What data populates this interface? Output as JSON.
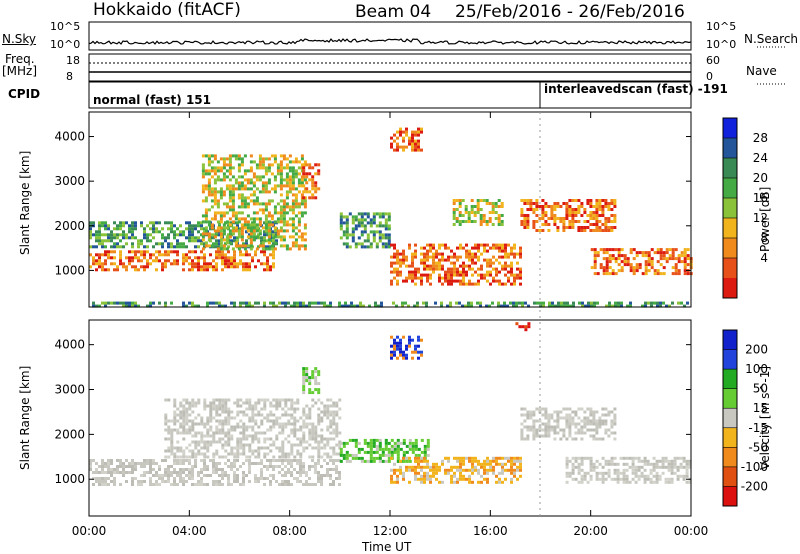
{
  "header": {
    "station": "Hokkaido (fitACF)",
    "beam": "Beam 04",
    "date_range": "25/Feb/2016 - 26/Feb/2016"
  },
  "top_panels": {
    "nsky_label": "N.Sky",
    "nsearch_label": "N.Search",
    "ns_tick_high": "10^5",
    "ns_tick_low": "10^0",
    "freq_label": "Freq.",
    "freq_unit": "[MHz]",
    "freq_ticks": [
      "18",
      "8"
    ],
    "nave_label": "Nave",
    "nave_ticks": [
      "60",
      "0"
    ],
    "cpid_label": "CPID",
    "cpid_modes": [
      {
        "label": "normal (fast) 151"
      },
      {
        "label": "interleavedscan (fast) -191"
      }
    ]
  },
  "chart_data": [
    {
      "type": "heatmap",
      "name": "power",
      "ylabel": "Slant Range [km]",
      "yticks": [
        "1000",
        "2000",
        "3000",
        "4000"
      ],
      "ylim": [
        180,
        4550
      ],
      "xlim": [
        0,
        24
      ],
      "colorbar": {
        "label": "Power [dB]",
        "ticks": [
          "28",
          "24",
          "20",
          "16",
          "12",
          "8",
          "4"
        ],
        "colors": [
          "#1122dd",
          "#225599",
          "#3a8a55",
          "#44aa44",
          "#8ac23a",
          "#f2b41c",
          "#f08a1c",
          "#e8501a",
          "#dd1a10"
        ]
      },
      "echo_regions": [
        {
          "t0": 0.0,
          "t1": 7.3,
          "r0": 1000,
          "r1": 1450,
          "level": "high"
        },
        {
          "t0": 0.0,
          "t1": 7.5,
          "r0": 1500,
          "r1": 2100,
          "level": "low"
        },
        {
          "t0": 4.5,
          "t1": 8.6,
          "r0": 1500,
          "r1": 3600,
          "level": "mid"
        },
        {
          "t0": 8.5,
          "t1": 9.2,
          "r0": 2600,
          "r1": 3400,
          "level": "high"
        },
        {
          "t0": 10.0,
          "t1": 12.0,
          "r0": 1500,
          "r1": 2300,
          "level": "low"
        },
        {
          "t0": 12.0,
          "t1": 13.2,
          "r0": 3700,
          "r1": 4200,
          "level": "high"
        },
        {
          "t0": 12.0,
          "t1": 17.2,
          "r0": 700,
          "r1": 1600,
          "level": "high"
        },
        {
          "t0": 14.5,
          "t1": 16.5,
          "r0": 2000,
          "r1": 2600,
          "level": "mid"
        },
        {
          "t0": 17.2,
          "t1": 21.0,
          "r0": 1900,
          "r1": 2600,
          "level": "high"
        },
        {
          "t0": 20.0,
          "t1": 24.0,
          "r0": 900,
          "r1": 1500,
          "level": "high"
        },
        {
          "t0": 0.0,
          "t1": 24.0,
          "r0": 180,
          "r1": 300,
          "level": "low"
        }
      ]
    },
    {
      "type": "heatmap",
      "name": "velocity",
      "ylabel": "Slant Range [km]",
      "yticks": [
        "1000",
        "2000",
        "3000",
        "4000"
      ],
      "ylim": [
        180,
        4550
      ],
      "xlim": [
        0,
        24
      ],
      "xlabel": "Time UT",
      "xticks": [
        "00:00",
        "04:00",
        "08:00",
        "12:00",
        "16:00",
        "20:00",
        "00:00"
      ],
      "colorbar": {
        "label": "Velocity [m s^-1]",
        "ticks": [
          "200",
          "100",
          "50",
          "15",
          "-15",
          "-50",
          "-100",
          "-200"
        ],
        "colors": [
          "#1122cc",
          "#2244dd",
          "#22aa22",
          "#66cc33",
          "#c8c8c0",
          "#f2b41c",
          "#f08a1c",
          "#e05010",
          "#dd1010"
        ]
      },
      "echo_regions": [
        {
          "t0": 0.0,
          "t1": 10.0,
          "r0": 900,
          "r1": 1450,
          "level": "gray"
        },
        {
          "t0": 3.0,
          "t1": 10.0,
          "r0": 1500,
          "r1": 2800,
          "level": "gray"
        },
        {
          "t0": 8.5,
          "t1": 9.2,
          "r0": 2900,
          "r1": 3500,
          "level": "green"
        },
        {
          "t0": 10.0,
          "t1": 13.5,
          "r0": 1400,
          "r1": 1900,
          "level": "green"
        },
        {
          "t0": 12.0,
          "t1": 13.2,
          "r0": 3700,
          "r1": 4200,
          "level": "blue"
        },
        {
          "t0": 12.0,
          "t1": 17.2,
          "r0": 900,
          "r1": 1500,
          "level": "orange"
        },
        {
          "t0": 17.2,
          "t1": 21.0,
          "r0": 1900,
          "r1": 2600,
          "level": "gray"
        },
        {
          "t0": 19.0,
          "t1": 24.0,
          "r0": 900,
          "r1": 1500,
          "level": "gray"
        },
        {
          "t0": 17.0,
          "t1": 17.5,
          "r0": 4300,
          "r1": 4500,
          "level": "red"
        }
      ]
    }
  ]
}
